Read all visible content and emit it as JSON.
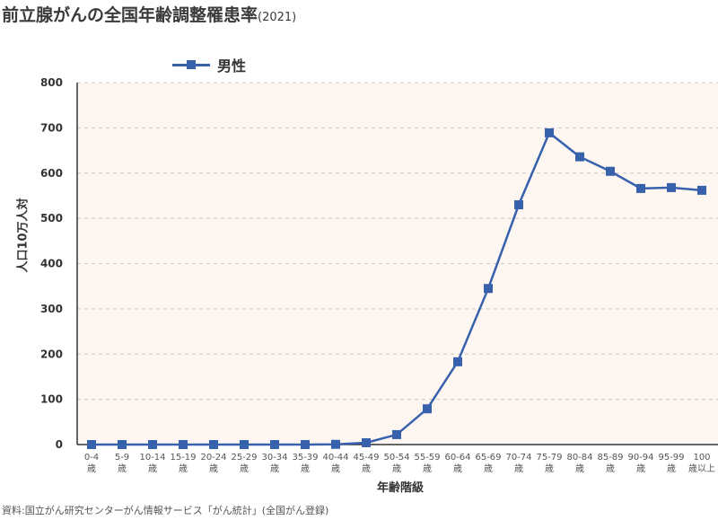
{
  "title": {
    "main": "前立腺がんの全国年齢調整罹患率",
    "year": "(2021)"
  },
  "legend": {
    "label": "男性",
    "color": "#3760ad"
  },
  "axes": {
    "ylabel": "人口10万人対",
    "xlabel": "年齢階級"
  },
  "source": "資料:国立がん研究センターがん情報サービス「がん統計」(全国がん登録)",
  "chart_data": {
    "type": "line",
    "title": "前立腺がんの全国年齢調整罹患率(2021)",
    "xlabel": "年齢階級",
    "ylabel": "人口10万人対",
    "ylim": [
      0,
      800
    ],
    "yticks": [
      0,
      100,
      200,
      300,
      400,
      500,
      600,
      700,
      800
    ],
    "grid": "horizontal dashed",
    "legend_position": "top-left",
    "categories": [
      "0-4歳",
      "5-9歳",
      "10-14歳",
      "15-19歳",
      "20-24歳",
      "25-29歳",
      "30-34歳",
      "35-39歳",
      "40-44歳",
      "45-49歳",
      "50-54歳",
      "55-59歳",
      "60-64歳",
      "65-69歳",
      "70-74歳",
      "75-79歳",
      "80-84歳",
      "85-89歳",
      "90-94歳",
      "95-99歳",
      "100歳以上"
    ],
    "category_lines": [
      [
        "0-4",
        "歳"
      ],
      [
        "5-9",
        "歳"
      ],
      [
        "10-14",
        "歳"
      ],
      [
        "15-19",
        "歳"
      ],
      [
        "20-24",
        "歳"
      ],
      [
        "25-29",
        "歳"
      ],
      [
        "30-34",
        "歳"
      ],
      [
        "35-39",
        "歳"
      ],
      [
        "40-44",
        "歳"
      ],
      [
        "45-49",
        "歳"
      ],
      [
        "50-54",
        "歳"
      ],
      [
        "55-59",
        "歳"
      ],
      [
        "60-64",
        "歳"
      ],
      [
        "65-69",
        "歳"
      ],
      [
        "70-74",
        "歳"
      ],
      [
        "75-79",
        "歳"
      ],
      [
        "80-84",
        "歳"
      ],
      [
        "85-89",
        "歳"
      ],
      [
        "90-94",
        "歳"
      ],
      [
        "95-99",
        "歳"
      ],
      [
        "100",
        "歳以上"
      ]
    ],
    "series": [
      {
        "name": "男性",
        "color": "#3760ad",
        "values": [
          0,
          0,
          0,
          0,
          0,
          0,
          0,
          0,
          0.5,
          4,
          22,
          79,
          183,
          345,
          530,
          689,
          636,
          604,
          566,
          568,
          562
        ]
      }
    ]
  }
}
